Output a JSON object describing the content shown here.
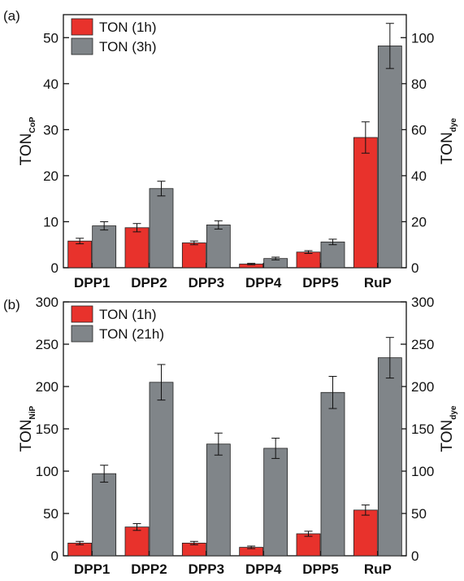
{
  "chart_data": [
    {
      "type": "bar",
      "panel_label": "(a)",
      "categories": [
        "DPP1",
        "DPP2",
        "DPP3",
        "DPP4",
        "DPP5",
        "RuP"
      ],
      "y_left_label": "TON",
      "y_left_label_sub": "CoP",
      "y_right_label": "TON",
      "y_right_label_sub": "dye",
      "ylim_left": [
        0,
        55
      ],
      "ylim_right": [
        0,
        110
      ],
      "yticks_left": [
        0,
        10,
        20,
        30,
        40,
        50
      ],
      "yticks_right": [
        0,
        20,
        40,
        60,
        80,
        100
      ],
      "legend_position": "top-left",
      "series": [
        {
          "name": "TON (1h)",
          "color": "#e8322c",
          "values": [
            5.8,
            8.7,
            5.4,
            0.8,
            3.4,
            28.3
          ],
          "errors": [
            0.6,
            0.9,
            0.4,
            0.15,
            0.3,
            3.4
          ]
        },
        {
          "name": "TON (3h)",
          "color": "#808589",
          "values": [
            9.1,
            17.2,
            9.3,
            2.0,
            5.6,
            48.2
          ],
          "errors": [
            0.9,
            1.6,
            0.9,
            0.3,
            0.6,
            4.9
          ]
        }
      ]
    },
    {
      "type": "bar",
      "panel_label": "(b)",
      "categories": [
        "DPP1",
        "DPP2",
        "DPP3",
        "DPP4",
        "DPP5",
        "RuP"
      ],
      "y_left_label": "TON",
      "y_left_label_sub": "NiP",
      "y_right_label": "TON",
      "y_right_label_sub": "dye",
      "ylim_left": [
        0,
        300
      ],
      "ylim_right": [
        0,
        300
      ],
      "yticks_left": [
        0,
        50,
        100,
        150,
        200,
        250,
        300
      ],
      "yticks_right": [
        0,
        50,
        100,
        150,
        200,
        250,
        300
      ],
      "legend_position": "top-left",
      "series": [
        {
          "name": "TON (1h)",
          "color": "#e8322c",
          "values": [
            15,
            34,
            15,
            10,
            26,
            54
          ],
          "errors": [
            2,
            4,
            2,
            1.5,
            3,
            6
          ]
        },
        {
          "name": "TON (21h)",
          "color": "#808589",
          "values": [
            97,
            205,
            132,
            127,
            193,
            234
          ],
          "errors": [
            10,
            21,
            13,
            12,
            19,
            24
          ]
        }
      ]
    }
  ]
}
